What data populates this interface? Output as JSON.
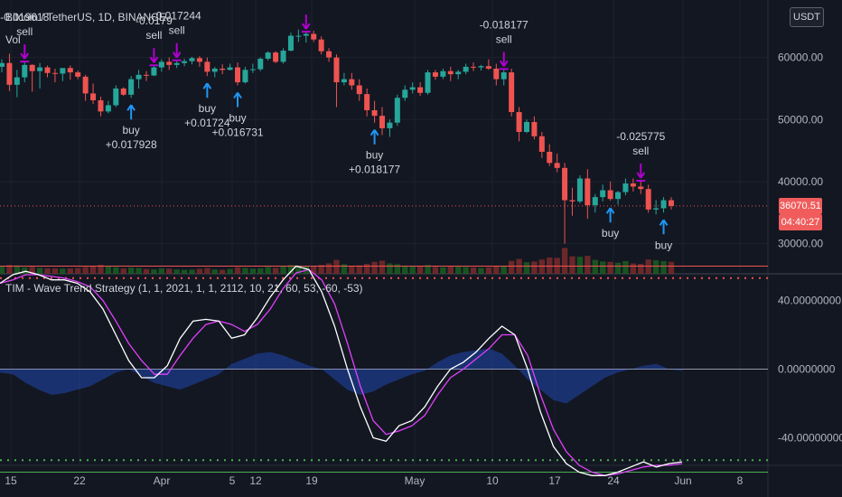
{
  "header": {
    "symbol": "Bitcoin / TetherUS, 1D, BINANCE",
    "volume_label": "Vol",
    "currency_button": "USDT",
    "indicator_title": "TIM - Wave Trend Strategy (1, 1, 2021, 1, 1, 2112, 10, 21, 60, 53, -60, -53)"
  },
  "last_price": {
    "value": "36070.51",
    "countdown": "04:40:27"
  },
  "colors": {
    "background": "#131722",
    "up": "#26a69a",
    "down": "#ef5350",
    "wt1": "#ffffff",
    "wt2": "#e040fb",
    "hist": "#2962ff",
    "buy": "#2196f3",
    "sell": "#b000d0",
    "upper_band": "#ef5350",
    "lower_band": "#4caf50"
  },
  "chart_data": [
    {
      "type": "candlestick",
      "y_ticks": [
        "60000.00",
        "50000.00",
        "40000.00",
        "30000.00"
      ],
      "x_ticks": [
        "15",
        "22",
        "Apr",
        "5",
        "12",
        "19",
        "May",
        "10",
        "17",
        "24",
        "Jun",
        "8"
      ],
      "ylim": [
        27000,
        67000
      ],
      "ohlc": [
        [
          58500,
          59700,
          57600,
          59100
        ],
        [
          59100,
          60600,
          54600,
          55600
        ],
        [
          55600,
          58000,
          53600,
          56800
        ],
        [
          56800,
          59200,
          56000,
          58800
        ],
        [
          58800,
          58900,
          54500,
          57800
        ],
        [
          57800,
          59100,
          55000,
          58400
        ],
        [
          58400,
          58700,
          56800,
          57500
        ],
        [
          57500,
          58200,
          56000,
          57400
        ],
        [
          57400,
          58000,
          56200,
          58300
        ],
        [
          58300,
          58700,
          56400,
          57600
        ],
        [
          57600,
          57900,
          56500,
          56900
        ],
        [
          56900,
          57200,
          53000,
          54200
        ],
        [
          54200,
          55800,
          52500,
          53100
        ],
        [
          53100,
          53700,
          50500,
          51300
        ],
        [
          51300,
          53000,
          51000,
          52300
        ],
        [
          52300,
          55500,
          52000,
          55000
        ],
        [
          55000,
          55200,
          53800,
          54000
        ],
        [
          54000,
          57000,
          53500,
          56500
        ],
        [
          56500,
          58000,
          55000,
          57200
        ],
        [
          57200,
          57800,
          56200,
          57100
        ],
        [
          57100,
          58600,
          57000,
          58400
        ],
        [
          58400,
          59700,
          57700,
          59300
        ],
        [
          59300,
          60000,
          58000,
          58800
        ],
        [
          58800,
          59400,
          58300,
          59100
        ],
        [
          59100,
          59800,
          58600,
          59400
        ],
        [
          59400,
          60100,
          58900,
          59900
        ],
        [
          59900,
          60200,
          58500,
          59300
        ],
        [
          59300,
          60000,
          57000,
          57700
        ],
        [
          57700,
          58500,
          56800,
          58200
        ],
        [
          58200,
          58900,
          57300,
          58000
        ],
        [
          58000,
          59000,
          57900,
          58400
        ],
        [
          58400,
          59200,
          55500,
          56000
        ],
        [
          56000,
          58500,
          55800,
          58000
        ],
        [
          58000,
          59000,
          57500,
          58100
        ],
        [
          58100,
          60000,
          57800,
          59800
        ],
        [
          59800,
          61000,
          59500,
          60800
        ],
        [
          60800,
          61000,
          59100,
          59300
        ],
        [
          59300,
          61500,
          59000,
          61100
        ],
        [
          61100,
          64000,
          61000,
          63500
        ],
        [
          63500,
          64500,
          62500,
          63500
        ],
        [
          63500,
          64000,
          62400,
          63800
        ],
        [
          63800,
          64300,
          62500,
          62900
        ],
        [
          62900,
          63400,
          60500,
          61000
        ],
        [
          61000,
          61500,
          59300,
          60000
        ],
        [
          60000,
          60500,
          52000,
          56000
        ],
        [
          56000,
          57500,
          55500,
          56500
        ],
        [
          56500,
          57500,
          54800,
          55500
        ],
        [
          55500,
          56500,
          53000,
          54100
        ],
        [
          54100,
          55000,
          50500,
          51500
        ],
        [
          51500,
          53000,
          49500,
          50600
        ],
        [
          50600,
          52000,
          47500,
          48600
        ],
        [
          48600,
          50000,
          47200,
          49500
        ],
        [
          49500,
          54000,
          49000,
          53500
        ],
        [
          53500,
          55500,
          53000,
          54800
        ],
        [
          54800,
          56000,
          54200,
          55200
        ],
        [
          55200,
          56000,
          53800,
          54300
        ],
        [
          54300,
          58000,
          54000,
          57600
        ],
        [
          57600,
          58000,
          56400,
          56900
        ],
        [
          56900,
          58200,
          56500,
          57800
        ],
        [
          57800,
          58500,
          56200,
          57300
        ],
        [
          57300,
          58000,
          56500,
          57700
        ],
        [
          57700,
          59000,
          57300,
          58500
        ],
        [
          58500,
          59200,
          57800,
          58400
        ],
        [
          58400,
          58800,
          57900,
          58600
        ],
        [
          58600,
          59700,
          58000,
          58200
        ],
        [
          58200,
          59000,
          55500,
          56500
        ],
        [
          56500,
          58000,
          55500,
          57600
        ],
        [
          57600,
          58200,
          50500,
          51200
        ],
        [
          51200,
          52000,
          46500,
          48000
        ],
        [
          48000,
          50000,
          47800,
          49600
        ],
        [
          49600,
          50500,
          46800,
          47300
        ],
        [
          47300,
          48000,
          43800,
          44800
        ],
        [
          44800,
          46000,
          42500,
          43000
        ],
        [
          43000,
          44500,
          41500,
          42200
        ],
        [
          42200,
          43000,
          30000,
          37000
        ],
        [
          37000,
          39000,
          34500,
          36800
        ],
        [
          36800,
          41000,
          36500,
          40500
        ],
        [
          40500,
          42000,
          34000,
          36200
        ],
        [
          36200,
          38000,
          35000,
          37500
        ],
        [
          37500,
          39500,
          36800,
          38600
        ],
        [
          38600,
          40000,
          36900,
          37200
        ],
        [
          37200,
          38500,
          36300,
          38300
        ],
        [
          38300,
          40500,
          37800,
          39700
        ],
        [
          39700,
          40500,
          38400,
          39200
        ],
        [
          39200,
          40000,
          38000,
          38800
        ],
        [
          38800,
          39500,
          35000,
          35500
        ],
        [
          35500,
          37000,
          34700,
          35700
        ],
        [
          35700,
          37500,
          35000,
          37000
        ],
        [
          37000,
          37500,
          35500,
          36070
        ]
      ],
      "volume": [
        38,
        44,
        42,
        32,
        35,
        30,
        28,
        27,
        26,
        27,
        29,
        34,
        40,
        45,
        38,
        33,
        27,
        31,
        29,
        24,
        22,
        27,
        26,
        22,
        20,
        21,
        25,
        29,
        22,
        20,
        24,
        33,
        30,
        26,
        28,
        34,
        30,
        36,
        44,
        42,
        40,
        38,
        45,
        52,
        70,
        48,
        40,
        42,
        50,
        60,
        66,
        52,
        48,
        40,
        37,
        40,
        44,
        35,
        33,
        38,
        36,
        34,
        32,
        30,
        33,
        40,
        38,
        65,
        75,
        58,
        62,
        72,
        82,
        80,
        130,
        88,
        86,
        90,
        70,
        62,
        60,
        56,
        64,
        52,
        50,
        72,
        68,
        64,
        60
      ],
      "last_price_marker": 36070,
      "signals": [
        {
          "bar": 3,
          "type": "sell",
          "text": "-0.019618",
          "label": "sell"
        },
        {
          "bar": 20,
          "type": "sell",
          "text": "-0.0179",
          "label": "sell"
        },
        {
          "bar": 23,
          "type": "sell",
          "text": "-0.017244",
          "label": "sell"
        },
        {
          "bar": 40,
          "type": "sell",
          "text": "",
          "label": ""
        },
        {
          "bar": 66,
          "type": "sell",
          "text": "-0.018177",
          "label": "sell"
        },
        {
          "bar": 84,
          "type": "sell",
          "text": "-0.025775",
          "label": "sell"
        },
        {
          "bar": 17,
          "type": "buy",
          "label": "buy",
          "text": "+0.017928"
        },
        {
          "bar": 27,
          "type": "buy",
          "label": "buy",
          "text": "+0.01724"
        },
        {
          "bar": 31,
          "type": "buy",
          "label": "buy",
          "text": "+0.016731"
        },
        {
          "bar": 49,
          "type": "buy",
          "label": "buy",
          "text": "+0.018177"
        },
        {
          "bar": 80,
          "type": "buy",
          "label": "buy",
          "text": ""
        },
        {
          "bar": 87,
          "type": "buy",
          "label": "buy",
          "text": ""
        }
      ]
    },
    {
      "type": "line",
      "title": "TIM - Wave Trend Strategy",
      "y_ticks": [
        "40.00000000",
        "0.00000000",
        "-40.00000000"
      ],
      "ylim": [
        -95,
        85
      ],
      "levels": {
        "ob1": 60,
        "ob2": 53,
        "os1": -60,
        "os2": -53
      },
      "series": [
        {
          "values": [
            50,
            55,
            57,
            55,
            52,
            52,
            50,
            45,
            35,
            20,
            5,
            -5,
            -5,
            2,
            18,
            28,
            29,
            28,
            18,
            20,
            30,
            42,
            52,
            60,
            58,
            45,
            25,
            0,
            -22,
            -40,
            -42,
            -33,
            -30,
            -22,
            -10,
            0,
            4,
            10,
            18,
            25,
            20,
            0,
            -25,
            -45,
            -55,
            -60,
            -62,
            -62,
            -60,
            -57,
            -54,
            -57,
            -55,
            -54
          ]
        },
        {
          "values": [
            50,
            52,
            55,
            55,
            54,
            53,
            51,
            48,
            40,
            28,
            15,
            5,
            -3,
            -3,
            8,
            18,
            26,
            28,
            26,
            22,
            26,
            35,
            47,
            56,
            58,
            52,
            38,
            15,
            -10,
            -30,
            -38,
            -36,
            -33,
            -27,
            -15,
            -5,
            0,
            6,
            12,
            20,
            20,
            8,
            -15,
            -35,
            -48,
            -56,
            -60,
            -62,
            -61,
            -59,
            -57,
            -56,
            -56,
            -55
          ]
        },
        {
          "values": [
            -2,
            -3,
            -8,
            -12,
            -15,
            -14,
            -12,
            -10,
            -6,
            -2,
            0,
            -4,
            -8,
            -10,
            -12,
            -9,
            -6,
            -3,
            3,
            6,
            9,
            10,
            8,
            5,
            2,
            0,
            -6,
            -12,
            -15,
            -13,
            -9,
            -6,
            -3,
            -1,
            4,
            8,
            10,
            11,
            12,
            9,
            2,
            -6,
            -12,
            -18,
            -20,
            -15,
            -10,
            -5,
            -2,
            0,
            2,
            3,
            0,
            -1
          ]
        }
      ]
    }
  ]
}
